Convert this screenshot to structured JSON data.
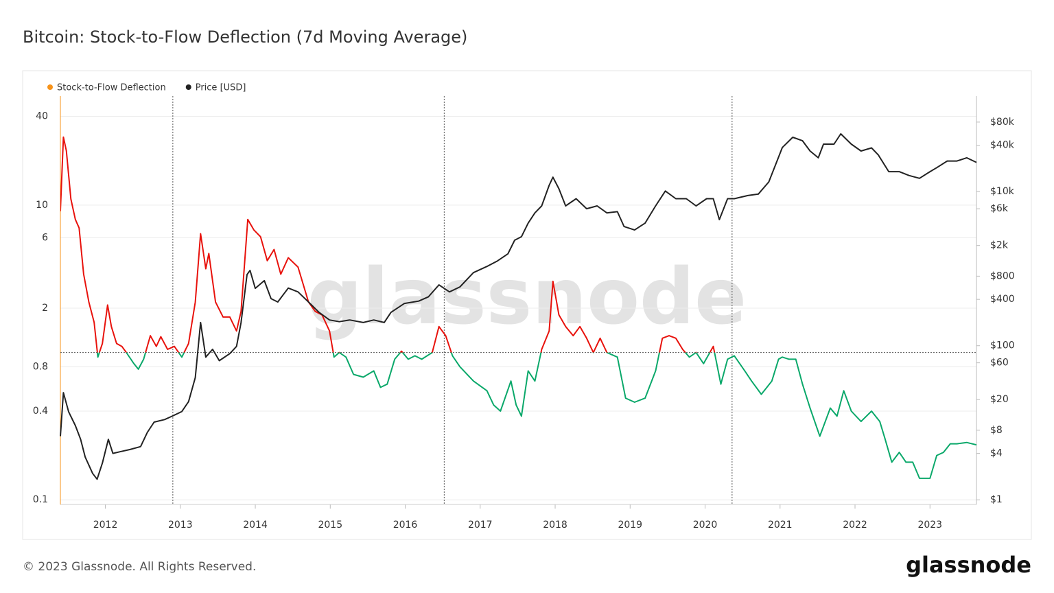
{
  "chart_data": {
    "type": "line",
    "title": "Bitcoin: Stock-to-Flow Deflection (7d Moving Average)",
    "watermark": "glassnode",
    "xlim": [
      2011.4,
      2023.62
    ],
    "xticks": [
      2012,
      2013,
      2014,
      2015,
      2016,
      2017,
      2018,
      2019,
      2020,
      2021,
      2022,
      2023
    ],
    "ylim": [
      0.093,
      55
    ],
    "ylog": true,
    "yticks": [
      0.1,
      0.4,
      0.8,
      2,
      6,
      10,
      40
    ],
    "y2lim": [
      0.87,
      174000
    ],
    "y2log": true,
    "y2ticks": [
      {
        "value": 1,
        "label": "$1"
      },
      {
        "value": 4,
        "label": "$4"
      },
      {
        "value": 8,
        "label": "$8"
      },
      {
        "value": 20,
        "label": "$20"
      },
      {
        "value": 60,
        "label": "$60"
      },
      {
        "value": 100,
        "label": "$100"
      },
      {
        "value": 400,
        "label": "$400"
      },
      {
        "value": 800,
        "label": "$800"
      },
      {
        "value": 2000,
        "label": "$2k"
      },
      {
        "value": 6000,
        "label": "$6k"
      },
      {
        "value": 10000,
        "label": "$10k"
      },
      {
        "value": 40000,
        "label": "$40k"
      },
      {
        "value": 80000,
        "label": "$80k"
      }
    ],
    "grid": true,
    "legend": "top-left",
    "hline": 1,
    "vlines": [
      2012.9,
      2016.52,
      2020.36
    ],
    "series": [
      {
        "name": "Stock-to-Flow Deflection",
        "color": "#f7931a",
        "above_color": "#e8120c",
        "below_color": "#0aa86a",
        "x": [
          2011.4,
          2011.44,
          2011.48,
          2011.54,
          2011.6,
          2011.65,
          2011.71,
          2011.78,
          2011.85,
          2011.9,
          2011.96,
          2012.03,
          2012.08,
          2012.15,
          2012.22,
          2012.28,
          2012.38,
          2012.44,
          2012.51,
          2012.6,
          2012.68,
          2012.74,
          2012.83,
          2012.92,
          2013.02,
          2013.11,
          2013.2,
          2013.27,
          2013.34,
          2013.38,
          2013.47,
          2013.57,
          2013.66,
          2013.75,
          2013.81,
          2013.9,
          2013.98,
          2014.07,
          2014.16,
          2014.25,
          2014.34,
          2014.44,
          2014.57,
          2014.71,
          2014.8,
          2014.89,
          2014.99,
          2015.05,
          2015.12,
          2015.21,
          2015.31,
          2015.44,
          2015.58,
          2015.67,
          2015.76,
          2015.86,
          2015.95,
          2016.04,
          2016.13,
          2016.22,
          2016.36,
          2016.45,
          2016.54,
          2016.63,
          2016.73,
          2016.91,
          2017.09,
          2017.18,
          2017.27,
          2017.41,
          2017.48,
          2017.55,
          2017.64,
          2017.73,
          2017.82,
          2017.92,
          2017.97,
          2018.05,
          2018.14,
          2018.24,
          2018.33,
          2018.42,
          2018.51,
          2018.6,
          2018.69,
          2018.83,
          2018.94,
          2019.06,
          2019.2,
          2019.34,
          2019.43,
          2019.52,
          2019.61,
          2019.7,
          2019.79,
          2019.88,
          2019.98,
          2020.11,
          2020.21,
          2020.3,
          2020.39,
          2020.53,
          2020.62,
          2020.75,
          2020.89,
          2020.98,
          2021.03,
          2021.12,
          2021.21,
          2021.3,
          2021.4,
          2021.53,
          2021.67,
          2021.76,
          2021.85,
          2021.95,
          2022.08,
          2022.22,
          2022.33,
          2022.4,
          2022.49,
          2022.59,
          2022.68,
          2022.77,
          2022.86,
          2023.0,
          2023.09,
          2023.18,
          2023.27,
          2023.36,
          2023.49,
          2023.62
        ],
        "values": [
          9.1,
          29,
          23.4,
          11,
          8,
          7,
          3.4,
          2.2,
          1.6,
          0.93,
          1.15,
          2.1,
          1.5,
          1.15,
          1.1,
          1,
          0.84,
          0.77,
          0.9,
          1.3,
          1.1,
          1.28,
          1.05,
          1.1,
          0.93,
          1.15,
          2.2,
          6.4,
          3.7,
          4.7,
          2.2,
          1.74,
          1.74,
          1.4,
          1.9,
          8,
          6.8,
          6.1,
          4.2,
          5,
          3.4,
          4.4,
          3.8,
          2.2,
          1.9,
          1.8,
          1.4,
          0.93,
          1,
          0.93,
          0.71,
          0.68,
          0.75,
          0.58,
          0.61,
          0.9,
          1.02,
          0.9,
          0.95,
          0.9,
          1,
          1.5,
          1.3,
          0.95,
          0.8,
          0.64,
          0.55,
          0.44,
          0.4,
          0.64,
          0.44,
          0.37,
          0.75,
          0.64,
          1.05,
          1.4,
          3.04,
          1.8,
          1.5,
          1.3,
          1.5,
          1.25,
          1,
          1.25,
          1,
          0.93,
          0.49,
          0.46,
          0.49,
          0.75,
          1.25,
          1.3,
          1.25,
          1.05,
          0.93,
          1,
          0.84,
          1.1,
          0.61,
          0.9,
          0.95,
          0.75,
          0.64,
          0.52,
          0.64,
          0.9,
          0.93,
          0.9,
          0.9,
          0.61,
          0.42,
          0.27,
          0.42,
          0.37,
          0.55,
          0.4,
          0.34,
          0.4,
          0.34,
          0.26,
          0.18,
          0.21,
          0.18,
          0.18,
          0.14,
          0.14,
          0.2,
          0.21,
          0.24,
          0.24,
          0.245,
          0.236
        ]
      },
      {
        "name": "Price [USD]",
        "color": "#222222",
        "axis": "y2",
        "x": [
          2011.4,
          2011.44,
          2011.51,
          2011.6,
          2011.67,
          2011.73,
          2011.83,
          2011.89,
          2011.96,
          2012.04,
          2012.1,
          2012.19,
          2012.33,
          2012.47,
          2012.56,
          2012.65,
          2012.79,
          2012.9,
          2013.02,
          2013.11,
          2013.2,
          2013.27,
          2013.34,
          2013.43,
          2013.52,
          2013.66,
          2013.75,
          2013.81,
          2013.89,
          2013.93,
          2014.0,
          2014.12,
          2014.21,
          2014.3,
          2014.44,
          2014.57,
          2014.71,
          2014.85,
          2014.99,
          2015.12,
          2015.26,
          2015.44,
          2015.58,
          2015.72,
          2015.81,
          2015.99,
          2016.18,
          2016.31,
          2016.45,
          2016.59,
          2016.73,
          2016.91,
          2017.09,
          2017.23,
          2017.37,
          2017.46,
          2017.55,
          2017.64,
          2017.73,
          2017.82,
          2017.92,
          2017.97,
          2018.05,
          2018.14,
          2018.28,
          2018.42,
          2018.56,
          2018.69,
          2018.83,
          2018.92,
          2019.06,
          2019.2,
          2019.34,
          2019.47,
          2019.61,
          2019.75,
          2019.88,
          2020.02,
          2020.11,
          2020.19,
          2020.3,
          2020.39,
          2020.57,
          2020.71,
          2020.85,
          2020.94,
          2021.03,
          2021.17,
          2021.3,
          2021.4,
          2021.51,
          2021.58,
          2021.72,
          2021.81,
          2021.95,
          2022.08,
          2022.22,
          2022.31,
          2022.45,
          2022.59,
          2022.72,
          2022.86,
          2023.0,
          2023.09,
          2023.23,
          2023.36,
          2023.49,
          2023.62
        ],
        "values": [
          6.7,
          24.6,
          13.9,
          9.2,
          6.1,
          3.6,
          2.2,
          1.85,
          3,
          6.1,
          4,
          4.2,
          4.5,
          4.9,
          7.5,
          10.2,
          11,
          12.3,
          14,
          18.8,
          38.6,
          200,
          71,
          90,
          64,
          79,
          98,
          200,
          838,
          950,
          556,
          700,
          409,
          370,
          560,
          500,
          370,
          271,
          216,
          205,
          216,
          200,
          216,
          200,
          271,
          354,
          380,
          432,
          616,
          500,
          580,
          890,
          1070,
          1260,
          1560,
          2340,
          2600,
          3900,
          5300,
          6530,
          12080,
          15400,
          10900,
          6530,
          8100,
          6000,
          6530,
          5300,
          5500,
          3520,
          3180,
          3900,
          6530,
          10200,
          8100,
          8100,
          6530,
          8100,
          8100,
          4330,
          8100,
          8100,
          8900,
          9300,
          13400,
          22300,
          37300,
          50800,
          45800,
          33700,
          27500,
          41400,
          41400,
          56300,
          41400,
          33700,
          37000,
          30000,
          18200,
          18200,
          16200,
          14900,
          18200,
          20500,
          25000,
          25000,
          27500,
          24000
        ]
      }
    ]
  },
  "footer": {
    "copyright": "© 2023 Glassnode. All Rights Reserved.",
    "logo": "glassnode"
  }
}
